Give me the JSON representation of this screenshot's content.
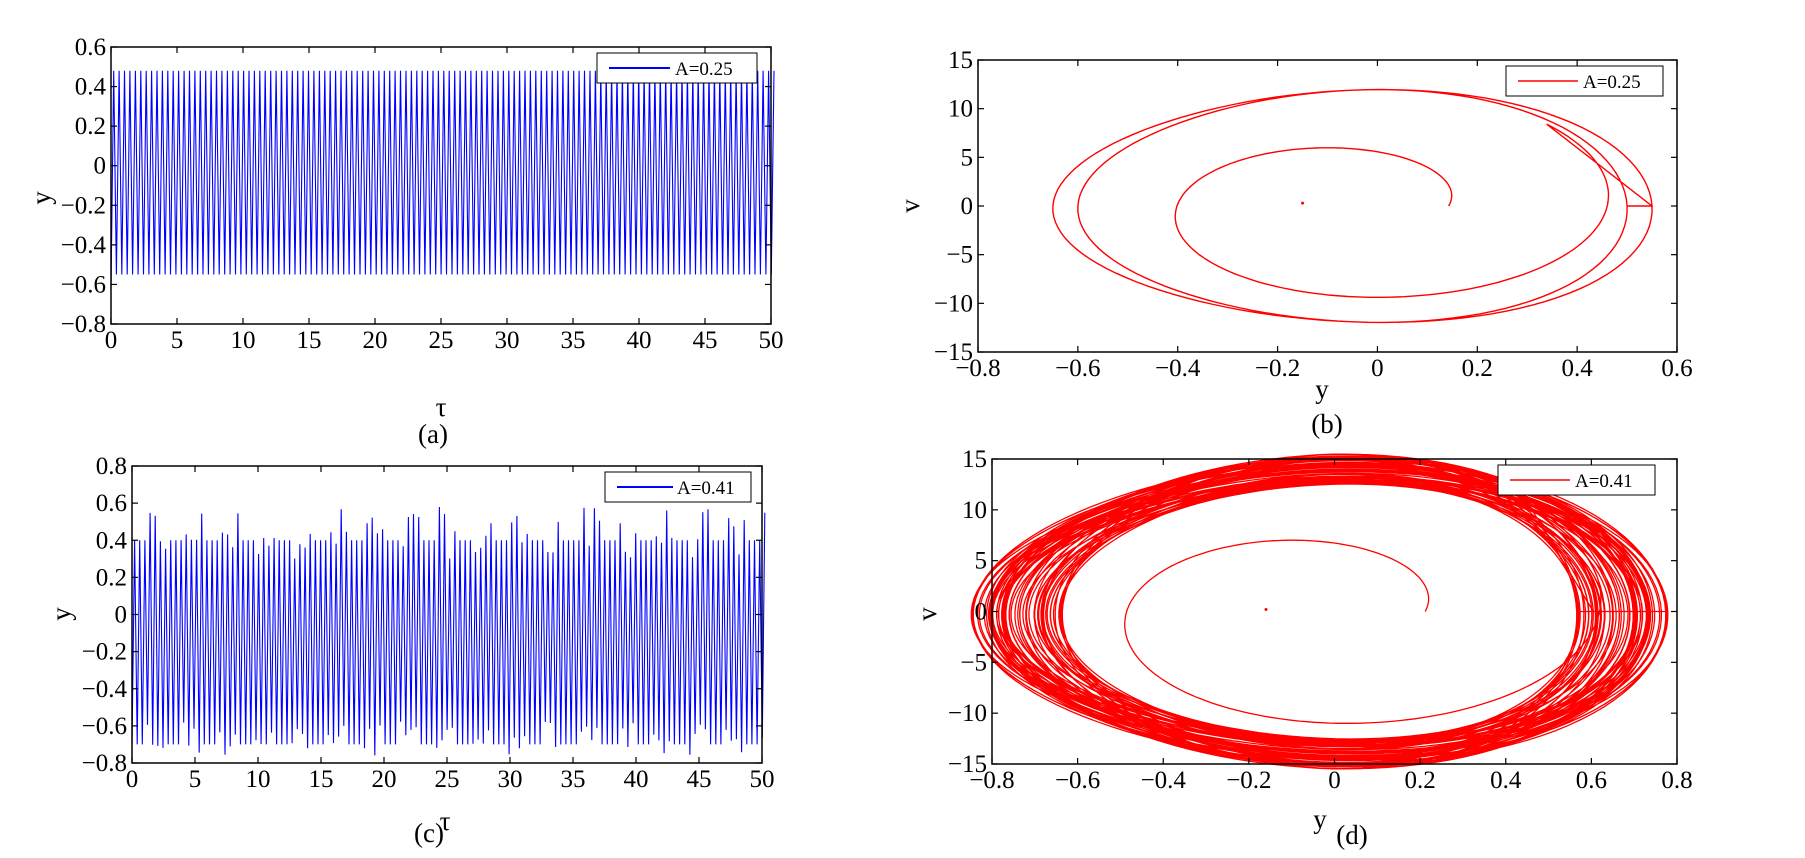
{
  "chart_data": [
    {
      "id": "a",
      "type": "line",
      "caption": "(a)",
      "xlabel": "τ",
      "ylabel": "y",
      "xlim": [
        0,
        50
      ],
      "ylim": [
        -0.8,
        0.6
      ],
      "xticks": [
        "0",
        "5",
        "10",
        "15",
        "20",
        "25",
        "30",
        "35",
        "40",
        "45",
        "50"
      ],
      "yticks": [
        "−0.8",
        "−0.6",
        "−0.4",
        "−0.2",
        "0",
        "0.2",
        "0.4",
        "0.6"
      ],
      "legend": {
        "label": "A=0.25",
        "placement": "top-right"
      },
      "series": [
        {
          "name": "A=0.25",
          "color": "#0000ff",
          "min": -0.55,
          "max": 0.48,
          "period": 0.41,
          "first_min": -0.62
        }
      ]
    },
    {
      "id": "b",
      "type": "line",
      "caption": "(b)",
      "xlabel": "y",
      "ylabel": "v",
      "xlim": [
        -0.8,
        0.6
      ],
      "ylim": [
        -15,
        15
      ],
      "xticks": [
        "−0.8",
        "−0.6",
        "−0.4",
        "−0.2",
        "0",
        "0.2",
        "0.4",
        "0.6"
      ],
      "yticks": [
        "−15",
        "−10",
        "−5",
        "0",
        "5",
        "10",
        "15"
      ],
      "legend": {
        "label": "A=0.25",
        "placement": "top-right"
      },
      "series": [
        {
          "name": "A=0.25",
          "color": "#ff0000",
          "start": [
            -0.15,
            0.3
          ],
          "y_range": [
            -0.62,
            0.48
          ],
          "v_range": [
            -11.6,
            12.2
          ]
        }
      ]
    },
    {
      "id": "c",
      "type": "line",
      "caption": "(c)",
      "xlabel": "τ",
      "ylabel": "y",
      "xlim": [
        0,
        50
      ],
      "ylim": [
        -0.8,
        0.8
      ],
      "xticks": [
        "0",
        "5",
        "10",
        "15",
        "20",
        "25",
        "30",
        "35",
        "40",
        "45",
        "50"
      ],
      "yticks": [
        "−0.8",
        "−0.6",
        "−0.4",
        "−0.2",
        "0",
        "0.2",
        "0.4",
        "0.6",
        "0.8"
      ],
      "legend": {
        "label": "A=0.41",
        "placement": "top-right"
      },
      "series": [
        {
          "name": "A=0.41",
          "color": "#0000ff",
          "min": -0.78,
          "max": 0.6,
          "period": 0.41
        }
      ]
    },
    {
      "id": "d",
      "type": "line",
      "caption": "(d)",
      "xlabel": "y",
      "ylabel": "v",
      "xlim": [
        -0.8,
        0.8
      ],
      "ylim": [
        -15,
        15
      ],
      "xticks": [
        "−0.8",
        "−0.6",
        "−0.4",
        "−0.2",
        "0",
        "0.2",
        "0.4",
        "0.6",
        "0.8"
      ],
      "yticks": [
        "−15",
        "−10",
        "−5",
        "0",
        "5",
        "10",
        "15"
      ],
      "legend": {
        "label": "A=0.41",
        "placement": "top-right"
      },
      "series": [
        {
          "name": "A=0.41",
          "color": "#ff0000",
          "start": [
            -0.16,
            0.2
          ],
          "y_range": [
            -0.76,
            0.65
          ],
          "v_range": [
            -13.9,
            14.0
          ]
        }
      ]
    }
  ]
}
